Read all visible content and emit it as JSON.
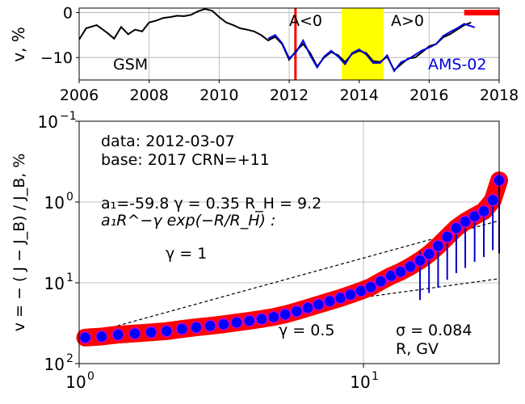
{
  "chart_data": [
    {
      "type": "line",
      "panel": "top",
      "ylabel": "v, %",
      "xlim": [
        2006,
        2018
      ],
      "ylim": [
        -15,
        1
      ],
      "x_ticks": [
        2006,
        2008,
        2010,
        2012,
        2014,
        2016,
        2018
      ],
      "y_ticks": [
        0,
        -10
      ],
      "tick_labels_x": [
        "2006",
        "2008",
        "2010",
        "2012",
        "2014",
        "2016",
        "2018"
      ],
      "tick_labels_y": [
        "0",
        "−10"
      ],
      "grid": true,
      "labels": {
        "gsm": "GSM",
        "ams": "AMS-02",
        "a_neg": "A<0",
        "a_pos": "A>0"
      },
      "colors": {
        "gsm": "#000000",
        "ams": "#0000dd",
        "marker": "#ff0000",
        "reversal": "#ffff00"
      },
      "marker_date": 2012.18,
      "reversal_span": [
        2013.5,
        2014.7
      ],
      "base_bar": [
        2017.0,
        2018.0
      ],
      "series": [
        {
          "name": "GSM",
          "x": [
            2006.0,
            2006.2,
            2006.5,
            2006.8,
            2007.0,
            2007.2,
            2007.4,
            2007.6,
            2007.8,
            2008.0,
            2008.2,
            2008.4,
            2008.6,
            2008.8,
            2009.0,
            2009.2,
            2009.4,
            2009.6,
            2009.8,
            2010.0,
            2010.2,
            2010.4,
            2010.6,
            2010.8,
            2011.0,
            2011.2,
            2011.4,
            2011.6,
            2011.8,
            2012.0,
            2012.2,
            2012.4,
            2012.6,
            2012.8,
            2013.0,
            2013.2,
            2013.4,
            2013.6,
            2013.8,
            2014.0,
            2014.2,
            2014.4,
            2014.6,
            2014.8,
            2015.0,
            2015.2,
            2015.4,
            2015.6,
            2015.8,
            2016.0,
            2016.2,
            2016.4,
            2016.6,
            2016.8,
            2017.0,
            2017.2
          ],
          "values": [
            -6,
            -3.5,
            -2.8,
            -4.5,
            -5.8,
            -3.2,
            -4.8,
            -3.8,
            -4.2,
            -2.2,
            -1.8,
            -1.2,
            -1.0,
            -0.7,
            -0.8,
            -0.5,
            0.3,
            0.8,
            0.4,
            -1.0,
            -2.2,
            -2.8,
            -3.5,
            -3.8,
            -4.2,
            -5.0,
            -6.2,
            -5.4,
            -7.0,
            -10.5,
            -8.5,
            -7.0,
            -9.0,
            -12.0,
            -10.0,
            -8.8,
            -9.5,
            -11.0,
            -9.2,
            -8.5,
            -9.0,
            -10.8,
            -11.0,
            -9.8,
            -12.8,
            -11.5,
            -10.2,
            -10.0,
            -8.8,
            -7.5,
            -7.0,
            -5.5,
            -4.8,
            -3.8,
            -2.8,
            -2.2
          ]
        },
        {
          "name": "AMS-02",
          "x": [
            2011.4,
            2011.6,
            2011.8,
            2012.0,
            2012.2,
            2012.4,
            2012.6,
            2012.8,
            2013.0,
            2013.2,
            2013.4,
            2013.6,
            2013.8,
            2014.0,
            2014.2,
            2014.4,
            2014.6,
            2014.8,
            2015.0,
            2015.2,
            2015.4,
            2015.6,
            2015.8,
            2016.0,
            2016.2,
            2016.4,
            2016.6,
            2016.8,
            2017.0,
            2017.3
          ],
          "values": [
            -5.8,
            -5.0,
            -6.8,
            -10.2,
            -8.8,
            -6.2,
            -9.5,
            -12.2,
            -9.8,
            -8.5,
            -9.8,
            -11.5,
            -9.0,
            -8.2,
            -9.3,
            -11.2,
            -11.2,
            -9.5,
            -13.0,
            -11.0,
            -10.4,
            -9.4,
            -8.4,
            -7.8,
            -7.0,
            -5.2,
            -4.3,
            -3.5,
            -2.5,
            -3.3
          ]
        }
      ]
    },
    {
      "type": "scatter",
      "panel": "bottom",
      "ylabel": "v = − ( J − J_B) / J_B, %",
      "xlabel": "R, GV",
      "xlim": [
        1,
        30
      ],
      "ylim": [
        100,
        0.1
      ],
      "x_scale": "log",
      "y_scale": "log",
      "y_inverted": true,
      "grid": true,
      "x_ticks": [
        1,
        10
      ],
      "y_ticks": [
        0.1,
        1,
        10,
        100
      ],
      "x_tick_labels": [
        {
          "base": "10",
          "exp": "0"
        },
        {
          "base": "10",
          "exp": "1"
        }
      ],
      "y_tick_labels": [
        {
          "base": "10",
          "exp": "−1"
        },
        {
          "base": "10",
          "exp": "0"
        },
        {
          "base": "10",
          "exp": "1"
        },
        {
          "base": "10",
          "exp": "2"
        }
      ],
      "annotations": {
        "data_line": "data: 2012-03-07",
        "base_line": "base: 2017   CRN=+11",
        "params_line": "a₁=-59.8  γ = 0.35  R_H =  9.2",
        "formula_line": "a₁R^−γ exp(−R/R_H) :",
        "gamma1": "γ = 1",
        "gamma05": "γ = 0.5",
        "sigma": "σ = 0.084"
      },
      "fit": {
        "a1": -59.8,
        "gamma": 0.35,
        "R_H": 9.2
      },
      "reference_lines": [
        {
          "gamma": 1,
          "from": [
            1.0,
            46.0
          ],
          "to": [
            30.0,
            1.7
          ]
        },
        {
          "gamma": 0.5,
          "from": [
            1.0,
            46.0
          ],
          "to": [
            30.0,
            8.9
          ]
        }
      ],
      "colors": {
        "band": "#ff0000",
        "points": "#0000ff",
        "point_edge": "#cc00cc",
        "errors": "#0000cc",
        "ref": "#000000"
      },
      "series": [
        {
          "name": "",
          "x": [
            1.05,
            1.2,
            1.37,
            1.57,
            1.79,
            2.03,
            2.3,
            2.58,
            2.89,
            3.22,
            3.58,
            3.97,
            4.38,
            4.83,
            5.3,
            5.82,
            6.37,
            6.95,
            7.6,
            8.3,
            9.0,
            9.8,
            10.6,
            11.5,
            12.5,
            13.5,
            14.6,
            15.8,
            17.0,
            18.3,
            19.7,
            21.2,
            22.8,
            24.6,
            26.5,
            28.5,
            30.0
          ],
          "values": [
            47.6,
            46.2,
            43.8,
            42.4,
            41.0,
            39.6,
            37.3,
            35.6,
            34.1,
            32.6,
            31.0,
            29.5,
            28.0,
            26.5,
            24.6,
            22.5,
            20.4,
            18.6,
            16.9,
            15.4,
            14.0,
            12.6,
            11.3,
            9.6,
            8.2,
            7.3,
            6.3,
            5.3,
            4.4,
            3.5,
            2.7,
            2.1,
            1.75,
            1.5,
            1.3,
            0.95,
            0.54
          ],
          "err_lo": [
            0,
            0,
            0,
            0,
            0,
            0,
            0,
            0,
            0,
            0,
            0,
            0,
            0,
            0,
            0,
            0,
            0,
            0,
            0,
            0,
            0,
            0,
            0,
            0,
            0,
            0,
            0,
            11.0,
            9.0,
            8.0,
            6.5,
            5.5,
            4.8,
            4.0,
            3.5,
            3.0,
            3.8
          ],
          "err_hi": [
            0,
            0,
            0,
            0,
            0,
            0,
            0,
            0,
            0,
            0,
            0,
            0,
            0,
            0,
            0,
            0,
            0,
            0,
            0,
            0,
            0,
            0,
            0,
            0,
            0,
            0,
            0,
            1.2,
            0.4,
            0.1,
            0.1,
            0.1,
            0.1,
            0.1,
            0.1,
            0.1,
            0.1
          ]
        }
      ]
    }
  ]
}
